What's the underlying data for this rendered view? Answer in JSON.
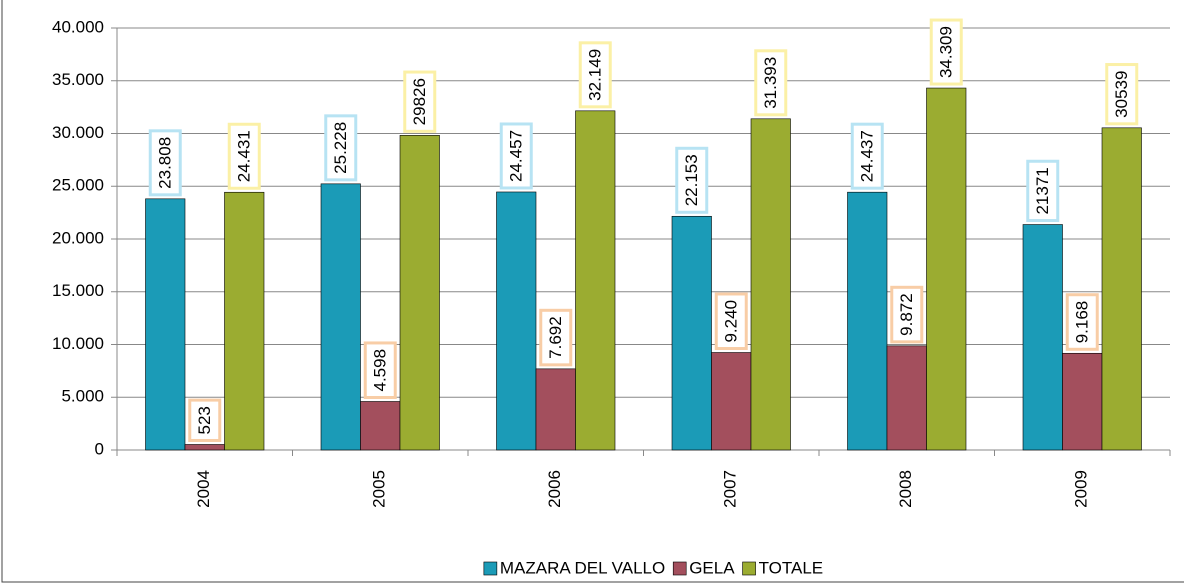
{
  "chart_data": {
    "type": "bar",
    "categories": [
      "2004",
      "2005",
      "2006",
      "2007",
      "2008",
      "2009"
    ],
    "series": [
      {
        "name": "MAZARA DEL VALLO",
        "color": "#1b9bb7",
        "label_border": "#b7e3f3",
        "values": [
          23808,
          25228,
          24457,
          22153,
          24437,
          21371
        ],
        "value_labels": [
          "23.808",
          "25.228",
          "24.457",
          "22.153",
          "24.437",
          "21371"
        ]
      },
      {
        "name": "GELA",
        "color": "#a34f5d",
        "label_border": "#f8cda6",
        "values": [
          523,
          4598,
          7692,
          9240,
          9872,
          9168
        ],
        "value_labels": [
          "523",
          "4.598",
          "7.692",
          "9.240",
          "9.872",
          "9.168"
        ]
      },
      {
        "name": "TOTALE",
        "color": "#9bac31",
        "label_border": "#fbf0a6",
        "values": [
          24431,
          29826,
          32149,
          31393,
          34309,
          30539
        ],
        "value_labels": [
          "24.431",
          "29826",
          "32.149",
          "31.393",
          "34.309",
          "30539"
        ]
      }
    ],
    "ylim": [
      0,
      40000
    ],
    "yticks": [
      0,
      {
        "value": 5000,
        "label": "5.000"
      },
      {
        "value": 10000,
        "label": "10.000"
      },
      {
        "value": 15000,
        "label": "15.000"
      },
      {
        "value": 20000,
        "label": "20.000"
      },
      {
        "value": 25000,
        "label": "25.000"
      },
      {
        "value": 30000,
        "label": "30.000"
      },
      {
        "value": 35000,
        "label": "35.000"
      },
      {
        "value": 40000,
        "label": "40.000"
      }
    ],
    "grid": true,
    "legend": "bottom"
  }
}
